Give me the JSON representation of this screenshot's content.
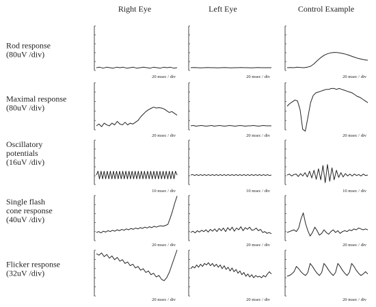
{
  "chart_data": {
    "type": "line",
    "title": "",
    "columns": [
      "Right Eye",
      "Left Eye",
      "Control Example"
    ],
    "rows": [
      {
        "label_lines": [
          "Rod response",
          "(80uV /div)"
        ],
        "time_scale": "20 msec / div",
        "panels": [
          {
            "column": "Right Eye",
            "y": [
              0.0,
              0.05,
              -0.05,
              0.05,
              0.0,
              -0.05,
              0.05,
              0.0,
              0.05,
              -0.05,
              0.0,
              0.05,
              -0.05,
              0.0,
              0.05,
              0.0,
              -0.05,
              0.05,
              0.0,
              -0.05,
              0.05,
              0.0,
              0.05,
              -0.05,
              0.0
            ]
          },
          {
            "column": "Left Eye",
            "y": [
              0.0,
              0.02,
              0.0,
              -0.02,
              0.0,
              0.02,
              0.0,
              0.0,
              -0.02,
              0.0,
              0.02,
              0.0,
              -0.02,
              0.0,
              0.0,
              0.02,
              0.0,
              0.0,
              -0.02,
              0.0,
              0.02,
              0.0,
              0.0,
              0.0,
              0.0
            ]
          },
          {
            "column": "Control Example",
            "y": [
              0.0,
              0.02,
              0.0,
              0.05,
              0.02,
              0.0,
              0.05,
              0.15,
              0.4,
              0.75,
              1.05,
              1.3,
              1.45,
              1.55,
              1.6,
              1.58,
              1.52,
              1.45,
              1.35,
              1.22,
              1.1,
              0.98,
              0.9,
              0.82,
              0.78
            ]
          }
        ]
      },
      {
        "label_lines": [
          "Maximal response",
          "(80uV /div)"
        ],
        "time_scale": "20 msec / div",
        "panels": [
          {
            "column": "Right Eye",
            "y": [
              0.0,
              0.1,
              -0.05,
              0.15,
              0.05,
              0.0,
              0.15,
              0.05,
              0.25,
              0.1,
              0.05,
              0.2,
              0.05,
              0.15,
              0.1,
              0.2,
              0.3,
              0.5,
              0.65,
              0.8,
              0.9,
              0.98,
              1.05,
              1.0,
              1.02,
              1.0,
              0.95,
              0.85,
              0.75,
              0.8,
              0.7,
              0.6
            ]
          },
          {
            "column": "Left Eye",
            "y": [
              0.0,
              0.02,
              -0.02,
              0.0,
              0.02,
              0.0,
              -0.02,
              0.0,
              0.02,
              -0.02,
              0.0,
              0.02,
              0.0,
              -0.02,
              0.0,
              0.02,
              0.0,
              -0.02,
              0.0,
              0.02,
              0.0,
              -0.02,
              0.0,
              0.0,
              0.02,
              0.0,
              -0.02,
              0.0,
              0.02,
              0.0,
              0.0,
              0.0
            ]
          },
          {
            "column": "Control Example",
            "y": [
              1.1,
              1.25,
              1.35,
              1.45,
              1.4,
              0.9,
              -0.2,
              -0.3,
              0.5,
              1.3,
              1.7,
              1.85,
              1.9,
              1.95,
              2.0,
              2.05,
              2.05,
              2.1,
              2.1,
              2.05,
              2.1,
              2.05,
              2.0,
              1.95,
              1.9,
              1.85,
              1.75,
              1.65,
              1.6,
              1.5,
              1.4,
              1.3
            ]
          }
        ]
      },
      {
        "label_lines": [
          "Oscillatory",
          "potentials",
          "(16uV /div)"
        ],
        "time_scale": "10 msec / div",
        "panels": [
          {
            "column": "Right Eye",
            "y": [
              0.0,
              0.8,
              -0.8,
              0.8,
              -0.8,
              0.8,
              -0.8,
              0.8,
              -0.8,
              0.8,
              -0.8,
              0.8,
              -0.8,
              0.8,
              -0.8,
              0.8,
              -0.8,
              0.8,
              -0.8,
              0.8,
              -0.8,
              0.8,
              -0.8,
              0.8,
              -0.8,
              0.8,
              -0.8,
              0.8,
              -0.8,
              0.8,
              -0.8,
              0.8,
              -0.8,
              0.8,
              -0.8,
              0.8,
              -0.8,
              0.8,
              -0.8,
              0.8,
              -0.8,
              0.8,
              -0.8,
              0.8,
              -0.8,
              0.8,
              -0.8,
              0.8,
              -0.8,
              0.8,
              -0.8,
              0.8,
              0.0
            ]
          },
          {
            "column": "Left Eye",
            "y": [
              0.0,
              0.1,
              -0.1,
              0.1,
              -0.1,
              0.1,
              -0.1,
              0.1,
              -0.1,
              0.1,
              -0.1,
              0.1,
              -0.1,
              0.1,
              -0.1,
              0.1,
              -0.1,
              0.1,
              -0.1,
              0.1,
              -0.1,
              0.1,
              -0.1,
              0.1,
              -0.1,
              0.1,
              -0.1,
              0.1,
              -0.1,
              0.1,
              -0.1,
              0.1,
              -0.1,
              0.1,
              -0.1,
              0.1,
              -0.1,
              0.1,
              -0.1,
              0.1,
              -0.1,
              0.0
            ]
          },
          {
            "column": "Control Example",
            "y": [
              0.0,
              0.2,
              -0.2,
              0.1,
              0.2,
              -0.3,
              0.3,
              -0.2,
              0.5,
              -0.4,
              0.8,
              -0.6,
              1.0,
              -0.9,
              1.3,
              -1.0,
              2.0,
              -1.6,
              2.2,
              -1.3,
              1.5,
              -1.0,
              1.0,
              -0.5,
              0.5,
              -0.4,
              0.3,
              -0.2,
              0.2,
              -0.2,
              0.2,
              -0.1,
              0.1,
              -0.2,
              0.2,
              -0.1,
              0.0
            ]
          }
        ]
      },
      {
        "label_lines": [
          "Single flash",
          "cone response",
          "(40uV /div)"
        ],
        "time_scale": "20 msec / div",
        "panels": [
          {
            "column": "Right Eye",
            "y": [
              0.0,
              0.1,
              -0.05,
              0.15,
              0.05,
              0.2,
              0.1,
              0.25,
              0.15,
              0.3,
              0.2,
              0.35,
              0.25,
              0.4,
              0.3,
              0.45,
              0.35,
              0.5,
              0.4,
              0.55,
              0.45,
              0.6,
              0.5,
              0.65,
              0.55,
              0.7,
              0.6,
              0.7,
              0.75,
              0.7,
              0.8,
              0.9,
              1.6,
              2.4,
              3.3,
              4.1
            ]
          },
          {
            "column": "Left Eye",
            "y": [
              0.0,
              0.15,
              -0.05,
              0.2,
              0.05,
              0.25,
              0.1,
              0.3,
              0.05,
              0.35,
              0.15,
              0.4,
              0.1,
              0.45,
              0.2,
              0.5,
              0.1,
              0.55,
              0.25,
              0.6,
              0.15,
              0.5,
              0.3,
              0.65,
              0.2,
              0.55,
              0.35,
              0.6,
              0.25,
              0.3,
              0.5,
              0.2,
              0.35,
              0.0,
              0.1,
              -0.1,
              0.0,
              -0.15
            ]
          },
          {
            "column": "Control Example",
            "y": [
              0.0,
              0.1,
              0.2,
              0.3,
              0.1,
              0.5,
              1.5,
              2.2,
              1.0,
              0.2,
              -0.4,
              0.0,
              0.6,
              0.2,
              -0.3,
              -0.1,
              0.3,
              0.0,
              -0.2,
              0.1,
              0.3,
              0.0,
              0.2,
              -0.1,
              0.1,
              0.2,
              0.1,
              0.3,
              0.2,
              0.4,
              0.3,
              0.5,
              0.4,
              0.3,
              0.4,
              0.3
            ]
          }
        ]
      },
      {
        "label_lines": [
          "Flicker response",
          "(32uV /div)"
        ],
        "time_scale": "20 msec / div",
        "panels": [
          {
            "column": "Right Eye",
            "y": [
              3.0,
              2.8,
              3.1,
              2.6,
              2.9,
              2.4,
              2.7,
              2.2,
              2.5,
              2.0,
              2.2,
              1.7,
              1.9,
              1.4,
              1.6,
              1.1,
              1.3,
              0.8,
              1.0,
              0.5,
              0.7,
              0.2,
              0.4,
              -0.1,
              0.1,
              -0.4,
              -0.6,
              -0.2,
              0.5,
              1.5,
              2.5,
              3.5
            ]
          },
          {
            "column": "Left Eye",
            "y": [
              1.0,
              1.3,
              1.1,
              1.5,
              1.2,
              1.6,
              1.3,
              1.7,
              1.5,
              1.8,
              1.4,
              1.7,
              1.3,
              1.6,
              1.2,
              1.5,
              1.0,
              1.4,
              0.9,
              1.2,
              0.7,
              1.1,
              0.6,
              0.9,
              0.4,
              0.7,
              0.2,
              0.5,
              0.0,
              0.3,
              -0.1,
              0.2,
              -0.2,
              0.1,
              -0.1,
              0.0,
              -0.2,
              0.1,
              -0.1,
              0.3,
              0.6,
              0.3
            ]
          },
          {
            "column": "Control Example",
            "y": [
              0.0,
              0.1,
              0.3,
              0.6,
              1.3,
              1.0,
              0.6,
              0.3,
              0.1,
              0.5,
              1.7,
              1.3,
              0.8,
              0.4,
              0.1,
              0.5,
              1.7,
              1.3,
              0.8,
              0.4,
              0.1,
              0.5,
              1.7,
              1.3,
              0.8,
              0.4,
              0.1,
              0.5,
              1.7,
              1.3,
              0.8,
              0.4,
              0.1,
              0.3,
              0.6,
              0.3
            ]
          }
        ]
      }
    ]
  }
}
